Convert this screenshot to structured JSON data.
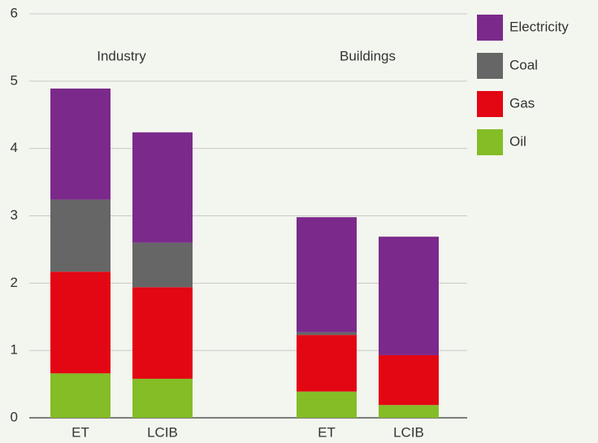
{
  "chart_data": {
    "type": "stacked_bar",
    "categories": [
      "ET",
      "LCIB",
      null,
      "ET",
      "LCIB"
    ],
    "series": [
      {
        "name": "Oil",
        "color": "#84bd26",
        "values": [
          0.66,
          0.58,
          null,
          0.39,
          0.19
        ]
      },
      {
        "name": "Gas",
        "color": "#e30613",
        "values": [
          1.51,
          1.36,
          null,
          0.84,
          0.74
        ]
      },
      {
        "name": "Coal",
        "color": "#666666",
        "values": [
          1.07,
          0.66,
          null,
          0.04,
          0
        ]
      },
      {
        "name": "Electricity",
        "color": "#7b2a8b",
        "values": [
          1.65,
          1.64,
          null,
          1.71,
          1.76
        ]
      }
    ],
    "annotations": [
      {
        "text": "Industry",
        "categories": [
          0,
          1
        ]
      },
      {
        "text": "Buildings",
        "categories": [
          3,
          4
        ]
      }
    ],
    "ylim": [
      0,
      6
    ],
    "yticks": [
      0,
      1,
      2,
      3,
      4,
      5,
      6
    ],
    "grid": true,
    "legend": "right"
  }
}
